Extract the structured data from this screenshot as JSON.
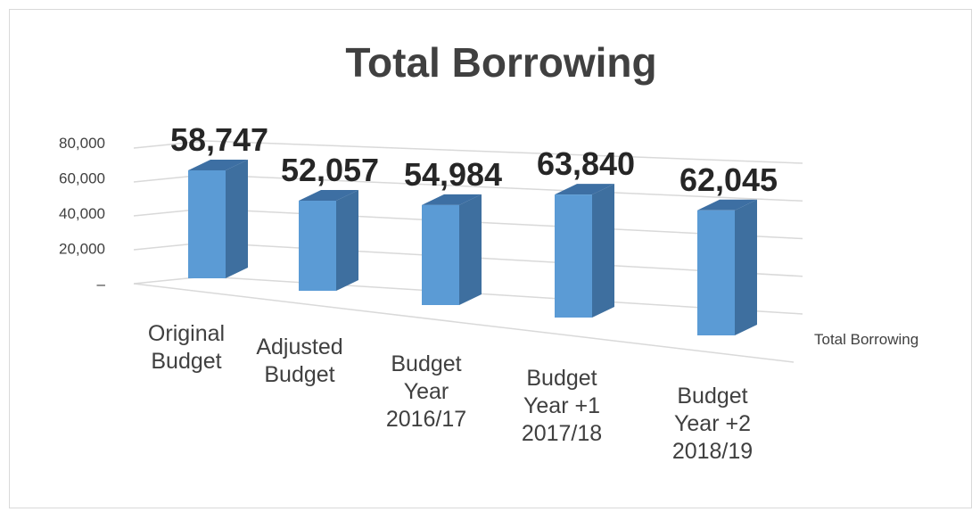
{
  "chart_data": {
    "type": "bar",
    "title": "Total Borrowing",
    "categories": [
      [
        "Original",
        "Budget"
      ],
      [
        "Adjusted",
        "Budget"
      ],
      [
        "Budget",
        "Year",
        "2016/17"
      ],
      [
        "Budget",
        "Year +1",
        "2017/18"
      ],
      [
        "Budget",
        "Year +2",
        "2018/19"
      ]
    ],
    "series": [
      {
        "name": "Total Borrowing",
        "values": [
          58747,
          52057,
          54984,
          63840,
          62045
        ],
        "data_labels": [
          "58,747",
          "52,057",
          "54,984",
          "63,840",
          "62,045"
        ],
        "color": "#5b9bd5"
      }
    ],
    "y_ticks": [
      "–",
      "20,000",
      "40,000",
      "60,000",
      "80,000"
    ],
    "ylim": [
      0,
      80000
    ],
    "grid": true,
    "legend": "right",
    "style": "3d-column"
  }
}
